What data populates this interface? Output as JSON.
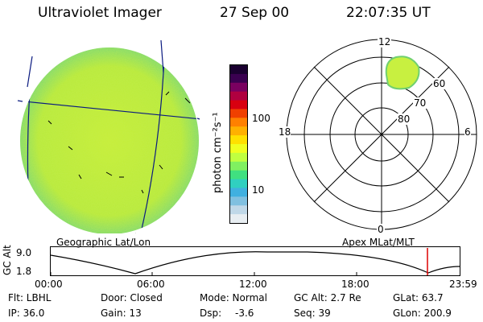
{
  "header": {
    "instrument": "Ultraviolet Imager",
    "date": "27 Sep 00",
    "time": "22:07:35 UT"
  },
  "colorbar": {
    "label": "photon cm⁻²s⁻¹",
    "ticks": [
      "100",
      "10"
    ],
    "colors": [
      "#1a0030",
      "#3a0050",
      "#7a0060",
      "#b00040",
      "#d80010",
      "#f04000",
      "#ff8000",
      "#ffb000",
      "#ffe000",
      "#f0ff20",
      "#c0ff40",
      "#80f060",
      "#40e080",
      "#30d0c0",
      "#40b0e0",
      "#80c0e0",
      "#c0d8e8",
      "#e8eef2"
    ]
  },
  "polar": {
    "labels": {
      "top": "12",
      "bottom": "0",
      "left": "18",
      "right": "6",
      "ring60": "60",
      "ring70": "70",
      "ring80": "80"
    }
  },
  "captions": {
    "geo": "Geographic Lat/Lon",
    "apex": "Apex MLat/MLT"
  },
  "altitude_plot": {
    "axis_label": "GC Alt",
    "y_ticks": [
      "9.0",
      "1.8"
    ],
    "x_ticks": [
      "00:00",
      "06:00",
      "12:00",
      "18:00",
      "23:59"
    ],
    "marker_color": "#dd0000"
  },
  "info": {
    "filter": "Flt: LBHL",
    "ip": "IP: 36.0",
    "door": "Door: Closed",
    "gain": "Gain: 13",
    "mode": "Mode: Normal",
    "dsp_label": "Dsp:",
    "dsp_value": "-3.6",
    "gc_alt": "GC Alt: 2.7 Re",
    "seq": "Seq: 39",
    "glat": "GLat: 63.7",
    "glon": "GLon: 200.9"
  }
}
